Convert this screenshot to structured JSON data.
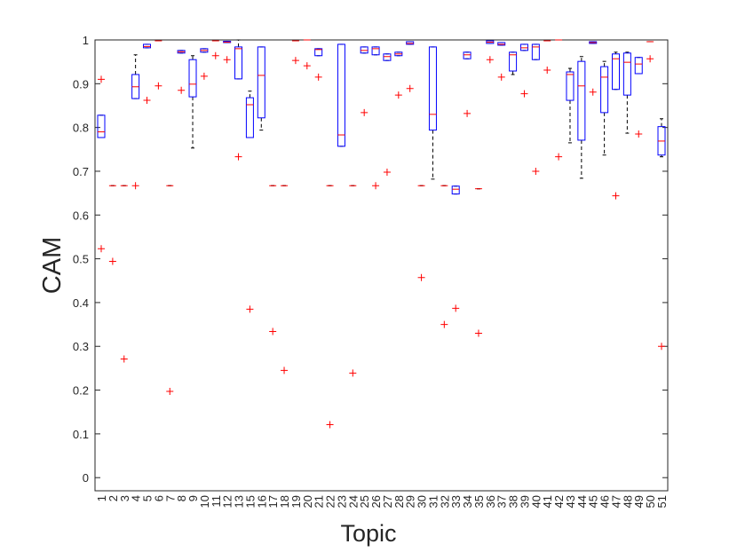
{
  "chart_data": {
    "type": "box",
    "xlabel": "Topic",
    "ylabel": "CAM",
    "categories": [
      "1",
      "2",
      "3",
      "4",
      "5",
      "6",
      "7",
      "8",
      "9",
      "10",
      "11",
      "12",
      "13",
      "15",
      "16",
      "17",
      "18",
      "19",
      "20",
      "21",
      "22",
      "23",
      "24",
      "25",
      "26",
      "27",
      "28",
      "29",
      "30",
      "31",
      "32",
      "33",
      "34",
      "35",
      "36",
      "37",
      "38",
      "39",
      "40",
      "41",
      "42",
      "43",
      "44",
      "45",
      "46",
      "47",
      "48",
      "49",
      "50",
      "51"
    ],
    "boxes": [
      {
        "q1": 0.777,
        "median": 0.79,
        "q3": 0.828,
        "whislo": 0.777,
        "whishi": 0.828,
        "outliers": [
          0.91,
          0.523
        ]
      },
      {
        "q1": 0.667,
        "median": 0.667,
        "q3": 0.667,
        "whislo": 0.667,
        "whishi": 0.667,
        "outliers": [
          0.494
        ]
      },
      {
        "q1": 0.667,
        "median": 0.667,
        "q3": 0.667,
        "whislo": 0.667,
        "whishi": 0.667,
        "outliers": [
          0.271
        ]
      },
      {
        "q1": 0.866,
        "median": 0.893,
        "q3": 0.921,
        "whislo": 0.866,
        "whishi": 0.966,
        "outliers": [
          0.667
        ]
      },
      {
        "q1": 0.982,
        "median": 0.985,
        "q3": 0.99,
        "whislo": 0.982,
        "whishi": 0.99,
        "outliers": [
          0.862
        ]
      },
      {
        "q1": 0.998,
        "median": 0.998,
        "q3": 0.998,
        "whislo": 0.998,
        "whishi": 0.998,
        "outliers": [
          0.895
        ]
      },
      {
        "q1": 0.667,
        "median": 0.667,
        "q3": 0.667,
        "whislo": 0.667,
        "whishi": 0.667,
        "outliers": [
          0.197
        ]
      },
      {
        "q1": 0.97,
        "median": 0.973,
        "q3": 0.976,
        "whislo": 0.97,
        "whishi": 0.976,
        "outliers": [
          0.885
        ]
      },
      {
        "q1": 0.87,
        "median": 0.899,
        "q3": 0.955,
        "whislo": 0.753,
        "whishi": 0.964,
        "outliers": []
      },
      {
        "q1": 0.972,
        "median": 0.976,
        "q3": 0.98,
        "whislo": 0.972,
        "whishi": 0.98,
        "outliers": [
          0.917
        ]
      },
      {
        "q1": 0.998,
        "median": 0.998,
        "q3": 0.998,
        "whislo": 0.998,
        "whishi": 0.998,
        "outliers": [
          0.964
        ]
      },
      {
        "q1": 0.994,
        "median": 0.995,
        "q3": 0.997,
        "whislo": 0.994,
        "whishi": 0.997,
        "outliers": [
          0.955
        ]
      },
      {
        "q1": 0.911,
        "median": 0.98,
        "q3": 0.984,
        "whislo": 0.911,
        "whishi": 1.0,
        "outliers": [
          0.733
        ]
      },
      {
        "q1": 0.777,
        "median": 0.852,
        "q3": 0.868,
        "whislo": 0.777,
        "whishi": 0.883,
        "outliers": [
          0.385
        ]
      },
      {
        "q1": 0.822,
        "median": 0.919,
        "q3": 0.984,
        "whislo": 0.794,
        "whishi": 0.984,
        "outliers": []
      },
      {
        "q1": 0.667,
        "median": 0.667,
        "q3": 0.667,
        "whislo": 0.667,
        "whishi": 0.667,
        "outliers": [
          0.334
        ]
      },
      {
        "q1": 0.667,
        "median": 0.667,
        "q3": 0.667,
        "whislo": 0.667,
        "whishi": 0.667,
        "outliers": [
          0.245
        ]
      },
      {
        "q1": 0.998,
        "median": 0.998,
        "q3": 0.998,
        "whislo": 0.998,
        "whishi": 0.998,
        "outliers": [
          0.953
        ]
      },
      {
        "q1": 1.0,
        "median": 1.0,
        "q3": 1.0,
        "whislo": 1.0,
        "whishi": 1.0,
        "outliers": [
          0.941
        ]
      },
      {
        "q1": 0.964,
        "median": 0.978,
        "q3": 0.98,
        "whislo": 0.964,
        "whishi": 0.98,
        "outliers": [
          0.915
        ]
      },
      {
        "q1": 0.667,
        "median": 0.667,
        "q3": 0.667,
        "whislo": 0.667,
        "whishi": 0.667,
        "outliers": [
          0.121
        ]
      },
      {
        "q1": 0.757,
        "median": 0.783,
        "q3": 0.99,
        "whislo": 0.757,
        "whishi": 0.99,
        "outliers": []
      },
      {
        "q1": 0.667,
        "median": 0.667,
        "q3": 0.667,
        "whislo": 0.667,
        "whishi": 0.667,
        "outliers": [
          0.239
        ]
      },
      {
        "q1": 0.97,
        "median": 0.976,
        "q3": 0.984,
        "whislo": 0.97,
        "whishi": 0.984,
        "outliers": [
          0.834
        ]
      },
      {
        "q1": 0.966,
        "median": 0.98,
        "q3": 0.984,
        "whislo": 0.966,
        "whishi": 0.984,
        "outliers": [
          0.667
        ]
      },
      {
        "q1": 0.953,
        "median": 0.962,
        "q3": 0.968,
        "whislo": 0.953,
        "whishi": 0.968,
        "outliers": [
          0.698
        ]
      },
      {
        "q1": 0.964,
        "median": 0.968,
        "q3": 0.972,
        "whislo": 0.964,
        "whishi": 0.972,
        "outliers": [
          0.874
        ]
      },
      {
        "q1": 0.99,
        "median": 0.992,
        "q3": 0.996,
        "whislo": 0.99,
        "whishi": 0.996,
        "outliers": [
          0.889
        ]
      },
      {
        "q1": 0.667,
        "median": 0.667,
        "q3": 0.667,
        "whislo": 0.667,
        "whishi": 0.667,
        "outliers": [
          0.457
        ]
      },
      {
        "q1": 0.794,
        "median": 0.83,
        "q3": 0.984,
        "whislo": 0.682,
        "whishi": 0.984,
        "outliers": []
      },
      {
        "q1": 0.667,
        "median": 0.667,
        "q3": 0.667,
        "whislo": 0.667,
        "whishi": 0.667,
        "outliers": [
          0.35
        ]
      },
      {
        "q1": 0.648,
        "median": 0.659,
        "q3": 0.666,
        "whislo": 0.648,
        "whishi": 0.666,
        "outliers": [
          0.387
        ]
      },
      {
        "q1": 0.957,
        "median": 0.966,
        "q3": 0.972,
        "whislo": 0.957,
        "whishi": 0.972,
        "outliers": [
          0.832
        ]
      },
      {
        "q1": 0.66,
        "median": 0.66,
        "q3": 0.66,
        "whislo": 0.66,
        "whishi": 0.66,
        "outliers": [
          0.33
        ]
      },
      {
        "q1": 0.992,
        "median": 0.995,
        "q3": 0.998,
        "whislo": 0.992,
        "whishi": 0.998,
        "outliers": [
          0.955
        ]
      },
      {
        "q1": 0.988,
        "median": 0.99,
        "q3": 0.994,
        "whislo": 0.988,
        "whishi": 0.994,
        "outliers": [
          0.915
        ]
      },
      {
        "q1": 0.929,
        "median": 0.966,
        "q3": 0.972,
        "whislo": 0.921,
        "whishi": 0.972,
        "outliers": []
      },
      {
        "q1": 0.976,
        "median": 0.982,
        "q3": 0.99,
        "whislo": 0.976,
        "whishi": 0.99,
        "outliers": [
          0.877
        ]
      },
      {
        "q1": 0.955,
        "median": 0.984,
        "q3": 0.99,
        "whislo": 0.955,
        "whishi": 0.99,
        "outliers": [
          0.7
        ]
      },
      {
        "q1": 0.998,
        "median": 0.998,
        "q3": 0.998,
        "whislo": 0.998,
        "whishi": 0.998,
        "outliers": [
          0.931
        ]
      },
      {
        "q1": 1.0,
        "median": 1.0,
        "q3": 1.0,
        "whislo": 1.0,
        "whishi": 1.0,
        "outliers": [
          0.733
        ]
      },
      {
        "q1": 0.862,
        "median": 0.921,
        "q3": 0.927,
        "whislo": 0.765,
        "whishi": 0.935,
        "outliers": []
      },
      {
        "q1": 0.771,
        "median": 0.895,
        "q3": 0.951,
        "whislo": 0.684,
        "whishi": 0.962,
        "outliers": []
      },
      {
        "q1": 0.992,
        "median": 0.994,
        "q3": 0.996,
        "whislo": 0.992,
        "whishi": 0.996,
        "outliers": [
          0.881
        ]
      },
      {
        "q1": 0.834,
        "median": 0.915,
        "q3": 0.939,
        "whislo": 0.737,
        "whishi": 0.951,
        "outliers": []
      },
      {
        "q1": 0.887,
        "median": 0.957,
        "q3": 0.968,
        "whislo": 0.887,
        "whishi": 0.972,
        "outliers": [
          0.644
        ]
      },
      {
        "q1": 0.874,
        "median": 0.949,
        "q3": 0.97,
        "whislo": 0.787,
        "whishi": 0.972,
        "outliers": []
      },
      {
        "q1": 0.923,
        "median": 0.945,
        "q3": 0.96,
        "whislo": 0.923,
        "whishi": 0.96,
        "outliers": [
          0.785
        ]
      },
      {
        "q1": 0.996,
        "median": 0.996,
        "q3": 0.996,
        "whislo": 0.996,
        "whishi": 0.996,
        "outliers": [
          0.957
        ]
      },
      {
        "q1": 0.737,
        "median": 0.769,
        "q3": 0.802,
        "whislo": 0.733,
        "whishi": 0.82,
        "outliers": [
          0.3
        ]
      }
    ],
    "box_color": "#0000ff",
    "median_color": "#ff0000",
    "outlier_color": "#ff0000",
    "whisker_color": "#000000",
    "ylim": [
      -0.03,
      1
    ],
    "yticks": [
      0,
      0.1,
      0.2,
      0.3,
      0.4,
      0.5,
      0.6,
      0.7,
      0.8,
      0.9,
      1
    ],
    "grid": false
  }
}
